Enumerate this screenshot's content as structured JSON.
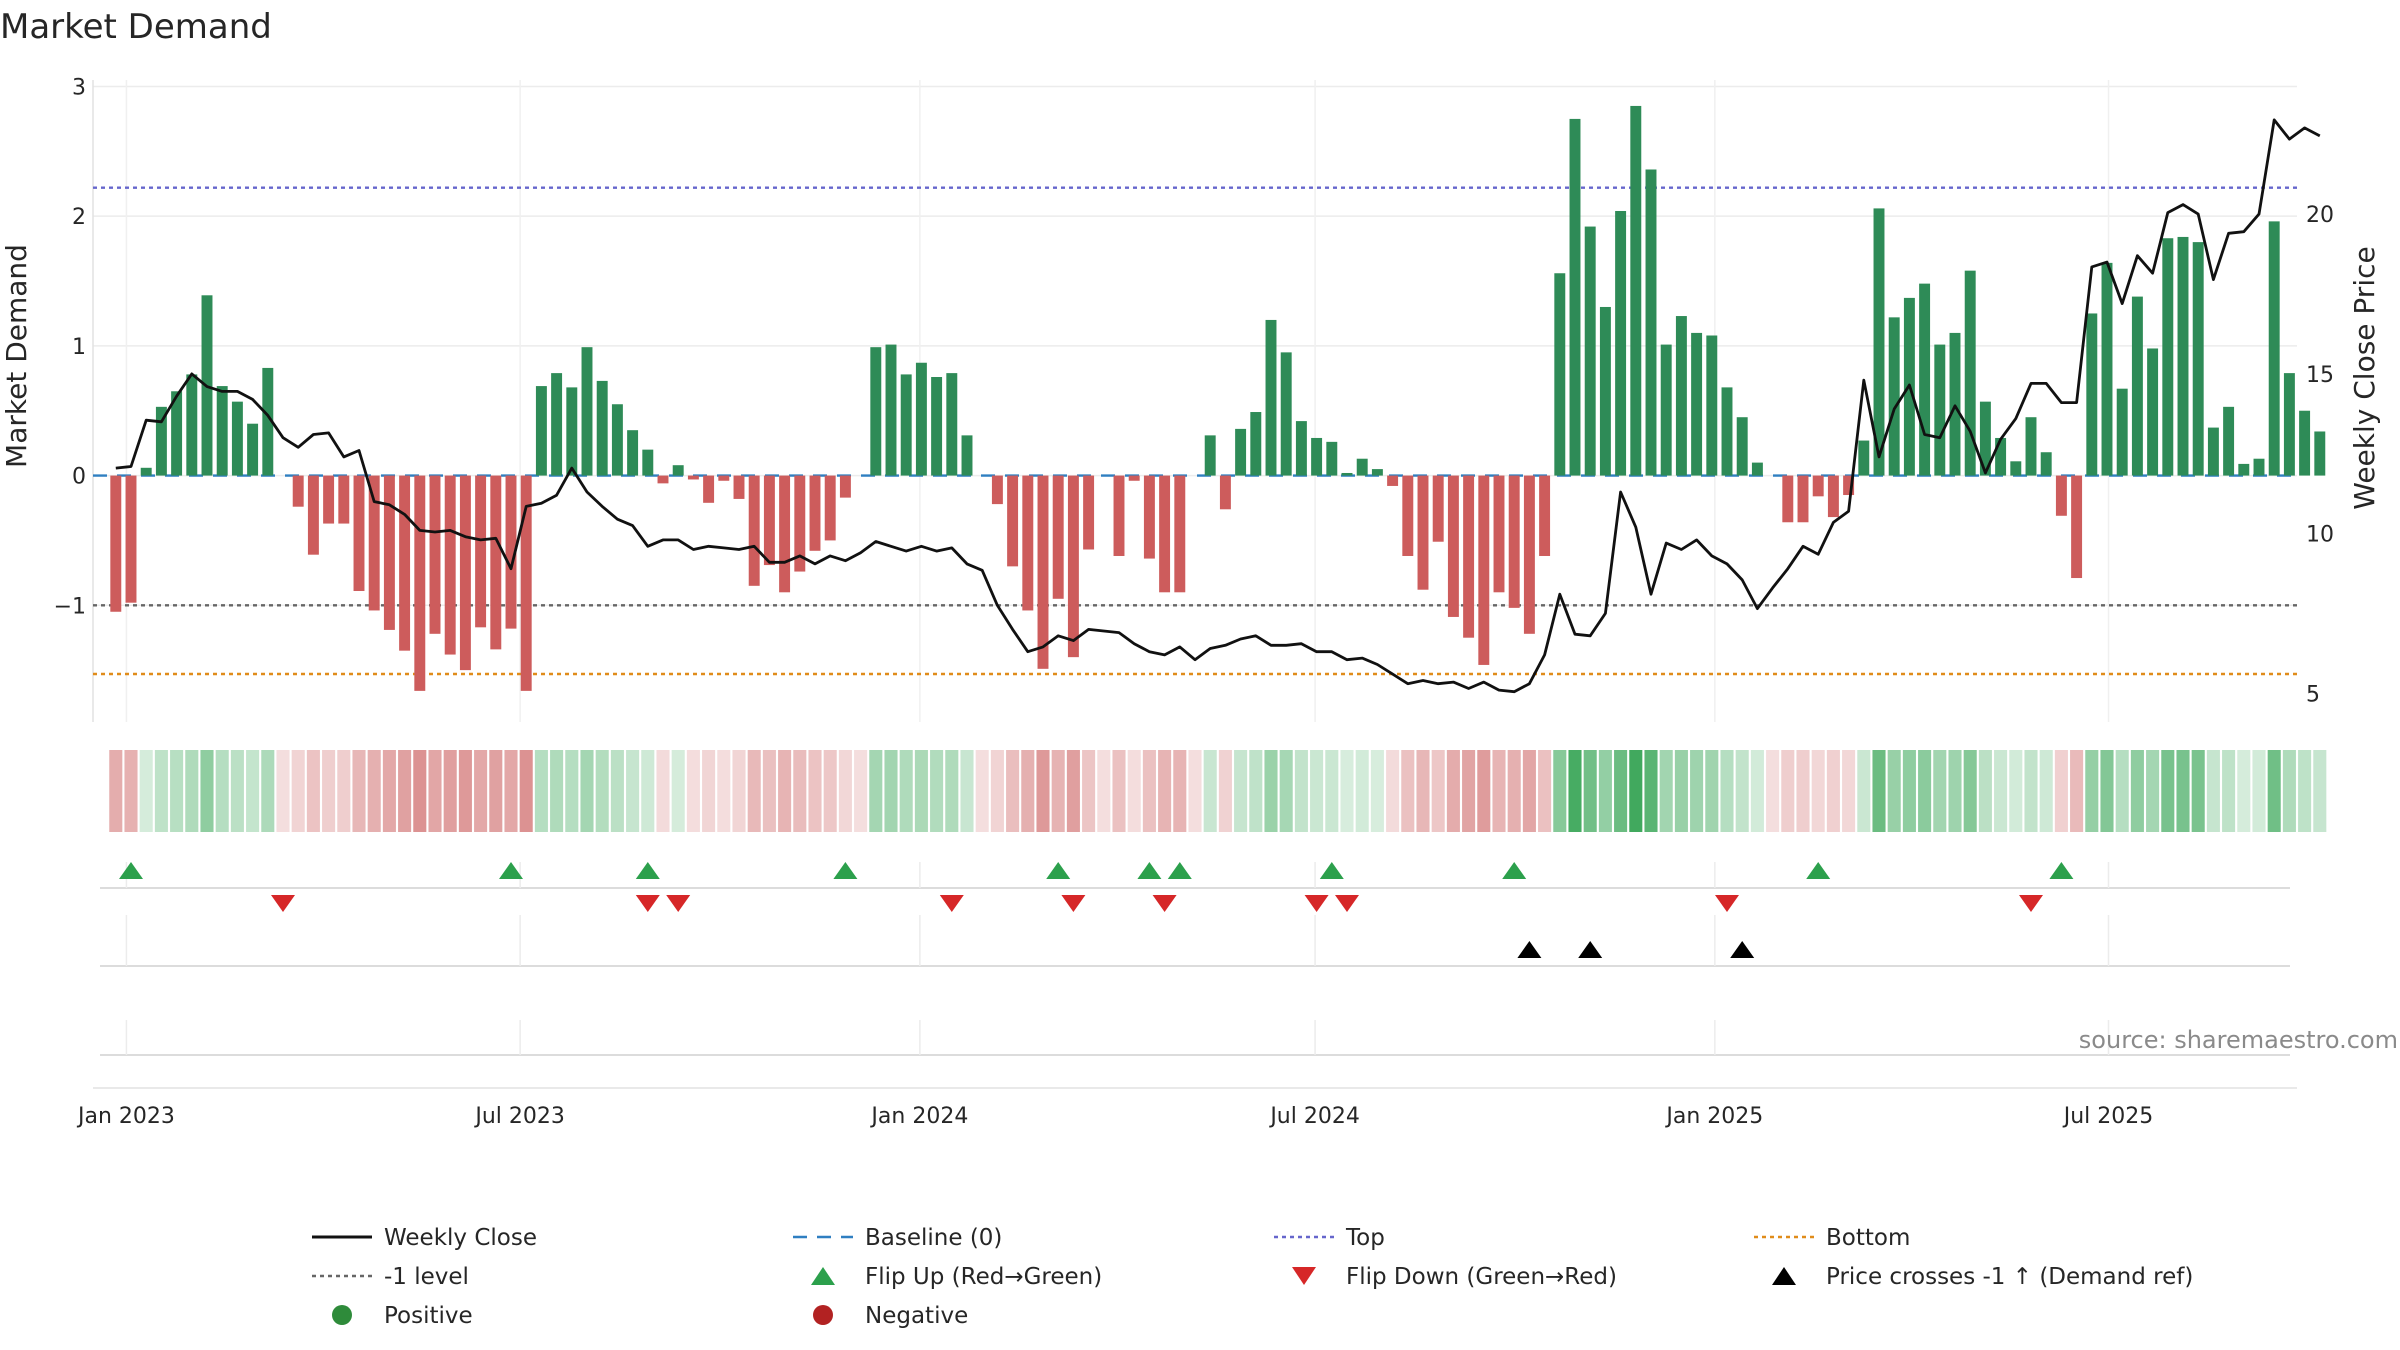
{
  "chart_data": {
    "type": "bar",
    "title": "Market Demand",
    "ylabel": "Market Demand",
    "ylabel_right": "Weekly Close Price",
    "ylim": [
      -1.9,
      3.05
    ],
    "ylim_right": [
      4.1,
      24.2
    ],
    "yticks": [
      3,
      2,
      1,
      0,
      -1
    ],
    "ytick_labels": [
      "3",
      "2",
      "1",
      "0",
      "−1"
    ],
    "yticks_right": [
      20,
      15,
      10,
      5
    ],
    "ytick_labels_right": [
      "20",
      "15",
      "10",
      "5"
    ],
    "xlim": [
      -1.5,
      143.5
    ],
    "x_ticks": [
      {
        "label": "Jan 2023",
        "week": 0.7
      },
      {
        "label": "Jul 2023",
        "week": 26.6
      },
      {
        "label": "Jan 2024",
        "week": 52.9
      },
      {
        "label": "Jul 2024",
        "week": 78.9
      },
      {
        "label": "Jan 2025",
        "week": 105.2
      },
      {
        "label": "Jul 2025",
        "week": 131.1
      }
    ],
    "reference_lines": [
      {
        "name": "Top",
        "value": 2.22,
        "color": "#6666cc"
      },
      {
        "name": "-1 level",
        "value": -1,
        "color": "#666666"
      },
      {
        "name": "Bottom",
        "value": -1.53,
        "color": "#e08c1a"
      },
      {
        "name": "Baseline (0)",
        "value": 0,
        "color": "#2f7fc1"
      }
    ],
    "series": [
      {
        "name": "Market Demand",
        "values": [
          -1.05,
          -0.98,
          0.06,
          0.53,
          0.65,
          0.78,
          1.39,
          0.69,
          0.57,
          0.4,
          0.83,
          0.0,
          -0.24,
          -0.61,
          -0.37,
          -0.37,
          -0.89,
          -1.04,
          -1.19,
          -1.35,
          -1.66,
          -1.22,
          -1.38,
          -1.5,
          -1.17,
          -1.34,
          -1.18,
          -1.66,
          0.69,
          0.79,
          0.68,
          0.99,
          0.73,
          0.55,
          0.35,
          0.2,
          -0.06,
          0.08,
          -0.03,
          -0.21,
          -0.04,
          -0.18,
          -0.85,
          -0.69,
          -0.9,
          -0.74,
          -0.58,
          -0.5,
          -0.17,
          0.0,
          0.99,
          1.01,
          0.78,
          0.87,
          0.76,
          0.79,
          0.31,
          0.0,
          -0.22,
          -0.7,
          -1.04,
          -1.49,
          -0.95,
          -1.4,
          -0.57,
          0.0,
          -0.62,
          -0.04,
          -0.64,
          -0.9,
          -0.9,
          0.0,
          0.31,
          -0.26,
          0.36,
          0.49,
          1.2,
          0.95,
          0.42,
          0.29,
          0.26,
          0.02,
          0.13,
          0.05,
          -0.08,
          -0.62,
          -0.88,
          -0.51,
          -1.09,
          -1.25,
          -1.46,
          -0.9,
          -1.02,
          -1.22,
          -0.62,
          1.56,
          2.75,
          1.92,
          1.3,
          2.04,
          2.85,
          2.36,
          1.01,
          1.23,
          1.1,
          1.08,
          0.68,
          0.45,
          0.1,
          0.0,
          -0.36,
          -0.36,
          -0.16,
          -0.32,
          -0.15,
          0.27,
          2.06,
          1.22,
          1.37,
          1.48,
          1.01,
          1.1,
          1.58,
          0.57,
          0.29,
          0.11,
          0.45,
          0.18,
          -0.31,
          -0.79,
          1.25,
          1.64,
          0.67,
          1.38,
          0.98,
          1.83,
          1.84,
          1.8,
          0.37,
          0.53,
          0.09,
          0.13,
          1.96,
          0.79,
          0.5,
          0.34
        ]
      },
      {
        "name": "Weekly Close",
        "axis": "right",
        "values": [
          12.05,
          12.1,
          13.55,
          13.5,
          14.3,
          15.0,
          14.6,
          14.45,
          14.45,
          14.2,
          13.7,
          13.0,
          12.7,
          13.1,
          13.15,
          12.4,
          12.6,
          11.0,
          10.9,
          10.6,
          10.1,
          10.05,
          10.1,
          9.9,
          9.8,
          9.85,
          8.9,
          10.85,
          10.95,
          11.2,
          12.05,
          11.3,
          10.85,
          10.45,
          10.25,
          9.6,
          9.8,
          9.8,
          9.5,
          9.6,
          9.55,
          9.5,
          9.6,
          9.1,
          9.1,
          9.3,
          9.05,
          9.3,
          9.15,
          9.4,
          9.75,
          9.6,
          9.45,
          9.6,
          9.45,
          9.55,
          9.05,
          8.85,
          7.75,
          7.0,
          6.3,
          6.45,
          6.8,
          6.65,
          7.0,
          6.95,
          6.9,
          6.55,
          6.3,
          6.2,
          6.45,
          6.05,
          6.4,
          6.5,
          6.7,
          6.8,
          6.5,
          6.5,
          6.55,
          6.3,
          6.3,
          6.05,
          6.1,
          5.9,
          5.6,
          5.3,
          5.4,
          5.3,
          5.35,
          5.15,
          5.35,
          5.1,
          5.05,
          5.3,
          6.2,
          8.1,
          6.85,
          6.8,
          7.5,
          11.3,
          10.2,
          8.1,
          9.7,
          9.5,
          9.8,
          9.3,
          9.05,
          8.55,
          7.65,
          8.3,
          8.9,
          9.6,
          9.35,
          10.35,
          10.7,
          14.8,
          12.4,
          13.9,
          14.65,
          13.1,
          13.0,
          14.0,
          13.2,
          11.9,
          12.95,
          13.6,
          14.7,
          14.7,
          14.1,
          14.1,
          18.35,
          18.5,
          17.2,
          18.7,
          18.15,
          20.05,
          20.3,
          20.0,
          17.95,
          19.4,
          19.45,
          20.0,
          22.95,
          22.35,
          22.7,
          22.45
        ]
      }
    ],
    "flip_up_weeks": [
      1,
      26,
      35,
      48,
      62,
      68,
      70,
      80,
      92,
      112,
      128
    ],
    "flip_down_weeks": [
      11,
      35,
      37,
      55,
      63,
      69,
      79,
      81,
      106,
      126
    ],
    "price_cross_weeks": [
      93,
      97,
      107
    ],
    "legend": [
      {
        "label": "Weekly Close",
        "kind": "line",
        "color": "#111111"
      },
      {
        "label": "Baseline (0)",
        "kind": "dashed",
        "color": "#2f7fc1"
      },
      {
        "label": "Top",
        "kind": "dotted",
        "color": "#6666cc"
      },
      {
        "label": "Bottom",
        "kind": "dotted",
        "color": "#e08c1a"
      },
      {
        "label": "-1 level",
        "kind": "dotted",
        "color": "#666666"
      },
      {
        "label": "Flip Up (Red→Green)",
        "kind": "tri-up",
        "color": "#2ca04c"
      },
      {
        "label": "Flip Down (Green→Red)",
        "kind": "tri-down",
        "color": "#d62728"
      },
      {
        "label": "Price crosses -1 ↑ (Demand ref)",
        "kind": "tri-up",
        "color": "#000000"
      },
      {
        "label": "Positive",
        "kind": "dot",
        "color": "#2e8b3a"
      },
      {
        "label": "Negative",
        "kind": "dot",
        "color": "#b22222"
      }
    ],
    "source": "source: sharemaestro.com",
    "colors": {
      "positive": "#2e8b57",
      "negative": "#cd5c5c",
      "price": "#111111",
      "heat_positive": "#2ca04c",
      "heat_negative": "#c44a4a"
    }
  }
}
